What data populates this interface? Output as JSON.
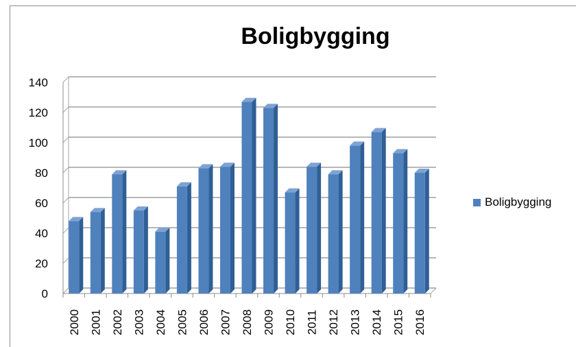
{
  "chart_data": {
    "type": "bar",
    "title": "Boligbygging",
    "categories": [
      "2000",
      "2001",
      "2002",
      "2003",
      "2004",
      "2005",
      "2006",
      "2007",
      "2008",
      "2009",
      "2010",
      "2011",
      "2012",
      "2013",
      "2014",
      "2015",
      "2016"
    ],
    "series": [
      {
        "name": "Boligbygging",
        "values": [
          48,
          54,
          79,
          55,
          41,
          71,
          83,
          84,
          127,
          123,
          67,
          84,
          79,
          98,
          107,
          93,
          80
        ]
      }
    ],
    "ylim": [
      0,
      140
    ],
    "yticks": [
      0,
      20,
      40,
      60,
      80,
      100,
      120,
      140
    ],
    "grid": true,
    "legend": "right",
    "color": "#4f81bd"
  }
}
